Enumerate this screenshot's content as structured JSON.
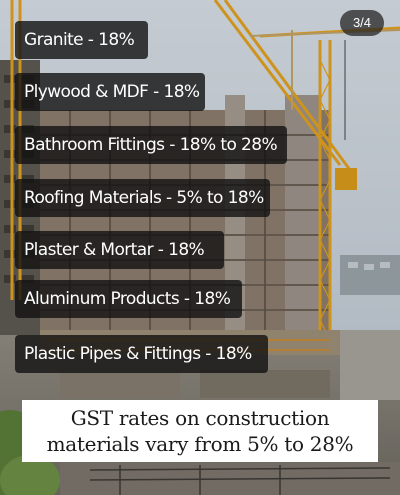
{
  "slide_counter": "3/4",
  "rates": [
    "Granite - 18%",
    "Plywood & MDF - 18%",
    "Bathroom Fittings - 18% to 28%",
    "Roofing Materials - 5% to 18%",
    "Plaster & Mortar - 18%",
    "Aluminum Products - 18%",
    "Plastic Pipes & Fittings - 18%"
  ],
  "caption": {
    "line1": "GST rates on construction",
    "line2": "materials vary from 5% to 28%"
  },
  "colors": {
    "label_background": "#121212",
    "label_text": "#ffffff",
    "caption_background": "#ffffff",
    "caption_text": "#1a1a1a",
    "crane": "#e0a020",
    "sky": "#c9d3dc"
  }
}
